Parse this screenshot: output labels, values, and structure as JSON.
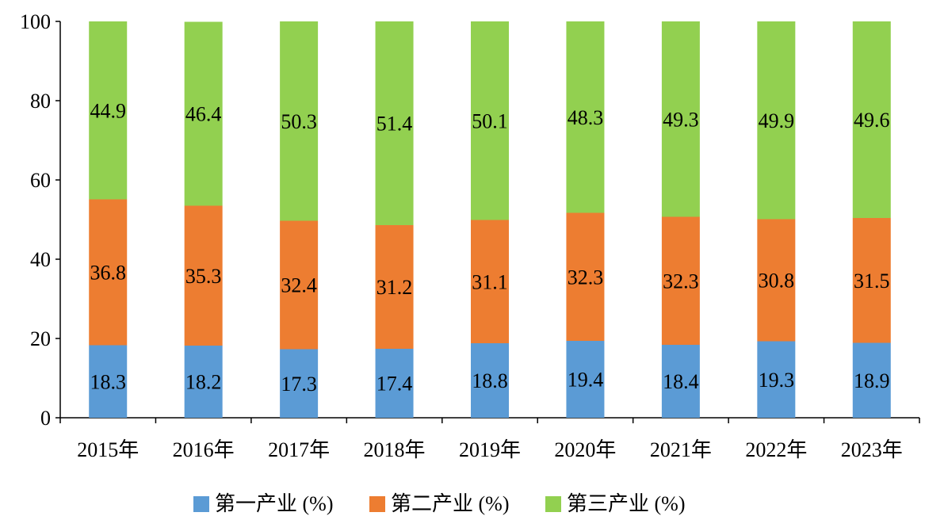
{
  "chart_data": {
    "type": "bar",
    "stacked": true,
    "categories": [
      "2015年",
      "2016年",
      "2017年",
      "2018年",
      "2019年",
      "2020年",
      "2021年",
      "2022年",
      "2023年"
    ],
    "series": [
      {
        "name": "第一产业 (%)",
        "color": "#5b9bd5",
        "values": [
          18.3,
          18.2,
          17.3,
          17.4,
          18.8,
          19.4,
          18.4,
          19.3,
          18.9
        ]
      },
      {
        "name": "第二产业 (%)",
        "color": "#ed7d31",
        "values": [
          36.8,
          35.3,
          32.4,
          31.2,
          31.1,
          32.3,
          32.3,
          30.8,
          31.5
        ]
      },
      {
        "name": "第三产业 (%)",
        "color": "#92d050",
        "values": [
          44.9,
          46.4,
          50.3,
          51.4,
          50.1,
          48.3,
          49.3,
          49.9,
          49.6
        ]
      }
    ],
    "ylim": [
      0,
      100
    ],
    "yticks": [
      "0",
      "20",
      "40",
      "60",
      "80",
      "100"
    ],
    "grid": false,
    "legend_position": "bottom",
    "title": "",
    "xlabel": "",
    "ylabel": ""
  }
}
